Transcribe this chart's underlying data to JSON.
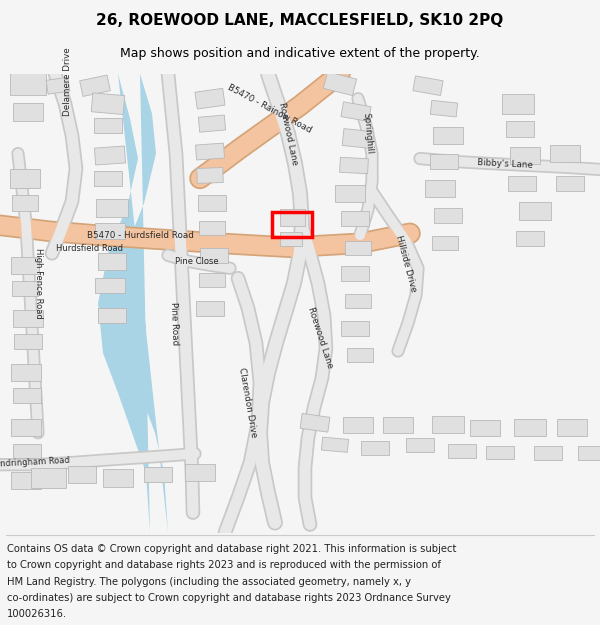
{
  "title": "26, ROEWOOD LANE, MACCLESFIELD, SK10 2PQ",
  "subtitle": "Map shows position and indicative extent of the property.",
  "footer_lines": [
    "Contains OS data © Crown copyright and database right 2021. This information is subject",
    "to Crown copyright and database rights 2023 and is reproduced with the permission of",
    "HM Land Registry. The polygons (including the associated geometry, namely x, y",
    "co-ordinates) are subject to Crown copyright and database rights 2023 Ordnance Survey",
    "100026316."
  ],
  "bg_color": "#f5f5f5",
  "map_bg": "#ffffff",
  "building_color": "#e0e0e0",
  "building_outline": "#b8b8b8",
  "water_color": "#a8d4e6",
  "major_road_color": "#f4c4a0",
  "major_road_outline": "#d4a478",
  "minor_road_color": "#e8e8e8",
  "minor_road_outline": "#c8c8c8",
  "highlight_color": "#ff0000",
  "title_fontsize": 11,
  "subtitle_fontsize": 9,
  "footer_fontsize": 7.2
}
